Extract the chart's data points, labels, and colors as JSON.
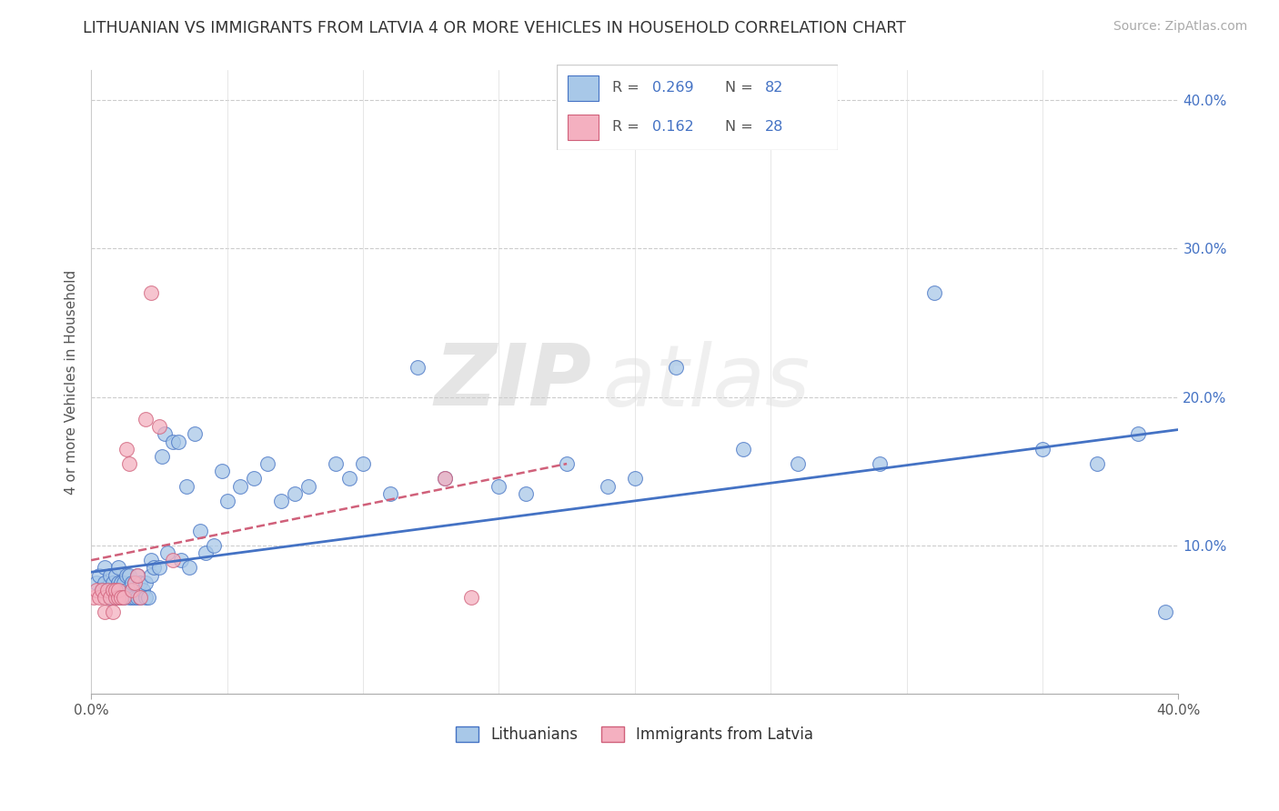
{
  "title": "LITHUANIAN VS IMMIGRANTS FROM LATVIA 4 OR MORE VEHICLES IN HOUSEHOLD CORRELATION CHART",
  "source_text": "Source: ZipAtlas.com",
  "ylabel": "4 or more Vehicles in Household",
  "xlim": [
    0.0,
    0.4
  ],
  "ylim": [
    0.0,
    0.42
  ],
  "ytick_values": [
    0.1,
    0.2,
    0.3,
    0.4
  ],
  "ytick_labels": [
    "10.0%",
    "20.0%",
    "30.0%",
    "40.0%"
  ],
  "legend_r1": "0.269",
  "legend_n1": "82",
  "legend_r2": "0.162",
  "legend_n2": "28",
  "color_blue": "#a8c8e8",
  "color_pink": "#f4b0c0",
  "line_blue": "#4472c4",
  "line_pink": "#d0607a",
  "watermark_zip": "ZIP",
  "watermark_atlas": "atlas",
  "blue_x": [
    0.002,
    0.003,
    0.004,
    0.005,
    0.005,
    0.006,
    0.007,
    0.007,
    0.008,
    0.008,
    0.009,
    0.009,
    0.009,
    0.01,
    0.01,
    0.01,
    0.01,
    0.011,
    0.011,
    0.012,
    0.012,
    0.013,
    0.013,
    0.014,
    0.014,
    0.015,
    0.015,
    0.015,
    0.016,
    0.016,
    0.017,
    0.017,
    0.018,
    0.018,
    0.019,
    0.02,
    0.02,
    0.021,
    0.022,
    0.022,
    0.023,
    0.025,
    0.026,
    0.027,
    0.028,
    0.03,
    0.032,
    0.033,
    0.035,
    0.036,
    0.038,
    0.04,
    0.042,
    0.045,
    0.048,
    0.05,
    0.055,
    0.06,
    0.065,
    0.07,
    0.075,
    0.08,
    0.09,
    0.095,
    0.1,
    0.11,
    0.12,
    0.13,
    0.15,
    0.16,
    0.175,
    0.19,
    0.2,
    0.215,
    0.24,
    0.26,
    0.29,
    0.31,
    0.35,
    0.37,
    0.385,
    0.395
  ],
  "blue_y": [
    0.075,
    0.08,
    0.07,
    0.075,
    0.085,
    0.07,
    0.065,
    0.08,
    0.07,
    0.075,
    0.065,
    0.07,
    0.08,
    0.065,
    0.07,
    0.075,
    0.085,
    0.065,
    0.075,
    0.065,
    0.075,
    0.07,
    0.08,
    0.065,
    0.08,
    0.065,
    0.07,
    0.075,
    0.065,
    0.075,
    0.065,
    0.08,
    0.065,
    0.075,
    0.07,
    0.065,
    0.075,
    0.065,
    0.08,
    0.09,
    0.085,
    0.085,
    0.16,
    0.175,
    0.095,
    0.17,
    0.17,
    0.09,
    0.14,
    0.085,
    0.175,
    0.11,
    0.095,
    0.1,
    0.15,
    0.13,
    0.14,
    0.145,
    0.155,
    0.13,
    0.135,
    0.14,
    0.155,
    0.145,
    0.155,
    0.135,
    0.22,
    0.145,
    0.14,
    0.135,
    0.155,
    0.14,
    0.145,
    0.22,
    0.165,
    0.155,
    0.155,
    0.27,
    0.165,
    0.155,
    0.175,
    0.055
  ],
  "pink_x": [
    0.001,
    0.002,
    0.003,
    0.004,
    0.005,
    0.005,
    0.006,
    0.007,
    0.008,
    0.008,
    0.009,
    0.009,
    0.01,
    0.01,
    0.011,
    0.012,
    0.013,
    0.014,
    0.015,
    0.016,
    0.017,
    0.018,
    0.02,
    0.022,
    0.025,
    0.03,
    0.13,
    0.14
  ],
  "pink_y": [
    0.065,
    0.07,
    0.065,
    0.07,
    0.055,
    0.065,
    0.07,
    0.065,
    0.055,
    0.07,
    0.065,
    0.07,
    0.065,
    0.07,
    0.065,
    0.065,
    0.165,
    0.155,
    0.07,
    0.075,
    0.08,
    0.065,
    0.185,
    0.27,
    0.18,
    0.09,
    0.145,
    0.065
  ],
  "blue_trend_x": [
    0.0,
    0.4
  ],
  "blue_trend_y": [
    0.082,
    0.178
  ],
  "pink_trend_x": [
    0.0,
    0.175
  ],
  "pink_trend_y": [
    0.09,
    0.155
  ]
}
